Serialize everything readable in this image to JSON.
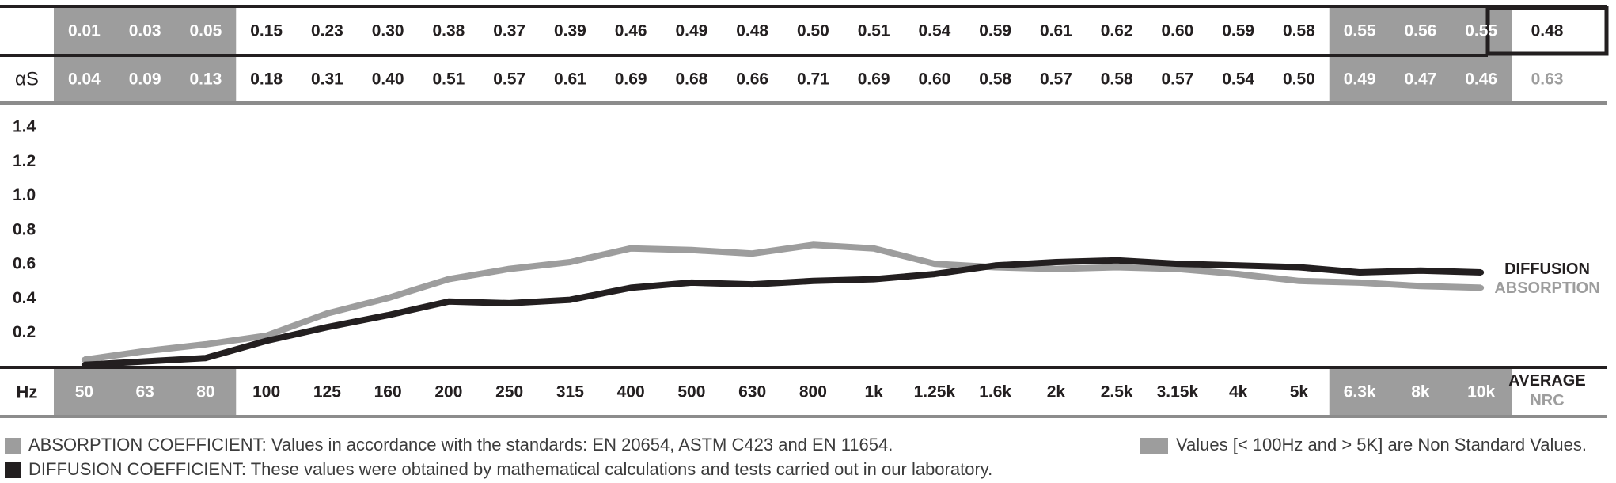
{
  "chart_data": {
    "type": "line",
    "x": [
      "50",
      "63",
      "80",
      "100",
      "125",
      "160",
      "200",
      "250",
      "315",
      "400",
      "500",
      "630",
      "800",
      "1k",
      "1.25k",
      "1.6k",
      "2k",
      "2.5k",
      "3.15k",
      "4k",
      "5k",
      "6.3k",
      "8k",
      "10k"
    ],
    "x_row_label": "Hz",
    "series": [
      {
        "name": "DIFFUSION",
        "values": [
          0.01,
          0.03,
          0.05,
          0.15,
          0.23,
          0.3,
          0.38,
          0.37,
          0.39,
          0.46,
          0.49,
          0.48,
          0.5,
          0.51,
          0.54,
          0.59,
          0.61,
          0.62,
          0.6,
          0.59,
          0.58,
          0.55,
          0.56,
          0.55
        ],
        "value_labels": [
          "0.01",
          "0.03",
          "0.05",
          "0.15",
          "0.23",
          "0.30",
          "0.38",
          "0.37",
          "0.39",
          "0.46",
          "0.49",
          "0.48",
          "0.50",
          "0.51",
          "0.54",
          "0.59",
          "0.61",
          "0.62",
          "0.60",
          "0.59",
          "0.58",
          "0.55",
          "0.56",
          "0.55"
        ],
        "row_label": "",
        "summary_value": "0.48",
        "color": "#231f20"
      },
      {
        "name": "ABSORPTION",
        "values": [
          0.04,
          0.09,
          0.13,
          0.18,
          0.31,
          0.4,
          0.51,
          0.57,
          0.61,
          0.69,
          0.68,
          0.66,
          0.71,
          0.69,
          0.6,
          0.58,
          0.57,
          0.58,
          0.57,
          0.54,
          0.5,
          0.49,
          0.47,
          0.46
        ],
        "value_labels": [
          "0.04",
          "0.09",
          "0.13",
          "0.18",
          "0.31",
          "0.40",
          "0.51",
          "0.57",
          "0.61",
          "0.69",
          "0.68",
          "0.66",
          "0.71",
          "0.69",
          "0.60",
          "0.58",
          "0.57",
          "0.58",
          "0.57",
          "0.54",
          "0.50",
          "0.49",
          "0.47",
          "0.46"
        ],
        "row_label": "αS",
        "summary_value": "0.63",
        "color": "#9d9d9d"
      }
    ],
    "ylim": [
      0,
      1.4
    ],
    "y_ticks": [
      "0.2",
      "0.4",
      "0.6",
      "0.8",
      "1.0",
      "1.2",
      "1.4"
    ],
    "grid": false,
    "non_standard_columns": [
      0,
      1,
      2,
      21,
      22,
      23
    ],
    "summary_header": {
      "average": "AVERAGE",
      "nrc": "NRC"
    },
    "colors": {
      "dark": "#231f20",
      "light": "#9d9d9d",
      "shade": "#9d9d9d",
      "rule": "#8c8c8c"
    }
  },
  "legend": {
    "absorption_note": "ABSORPTION COEFFICIENT: Values in accordance with the standards: EN 20654, ASTM C423 and EN 11654.",
    "diffusion_note": "DIFFUSION COEFFICIENT: These values were obtained by mathematical calculations and tests carried out in our laboratory.",
    "non_standard_note": "Values [< 100Hz and > 5K] are Non Standard Values."
  }
}
